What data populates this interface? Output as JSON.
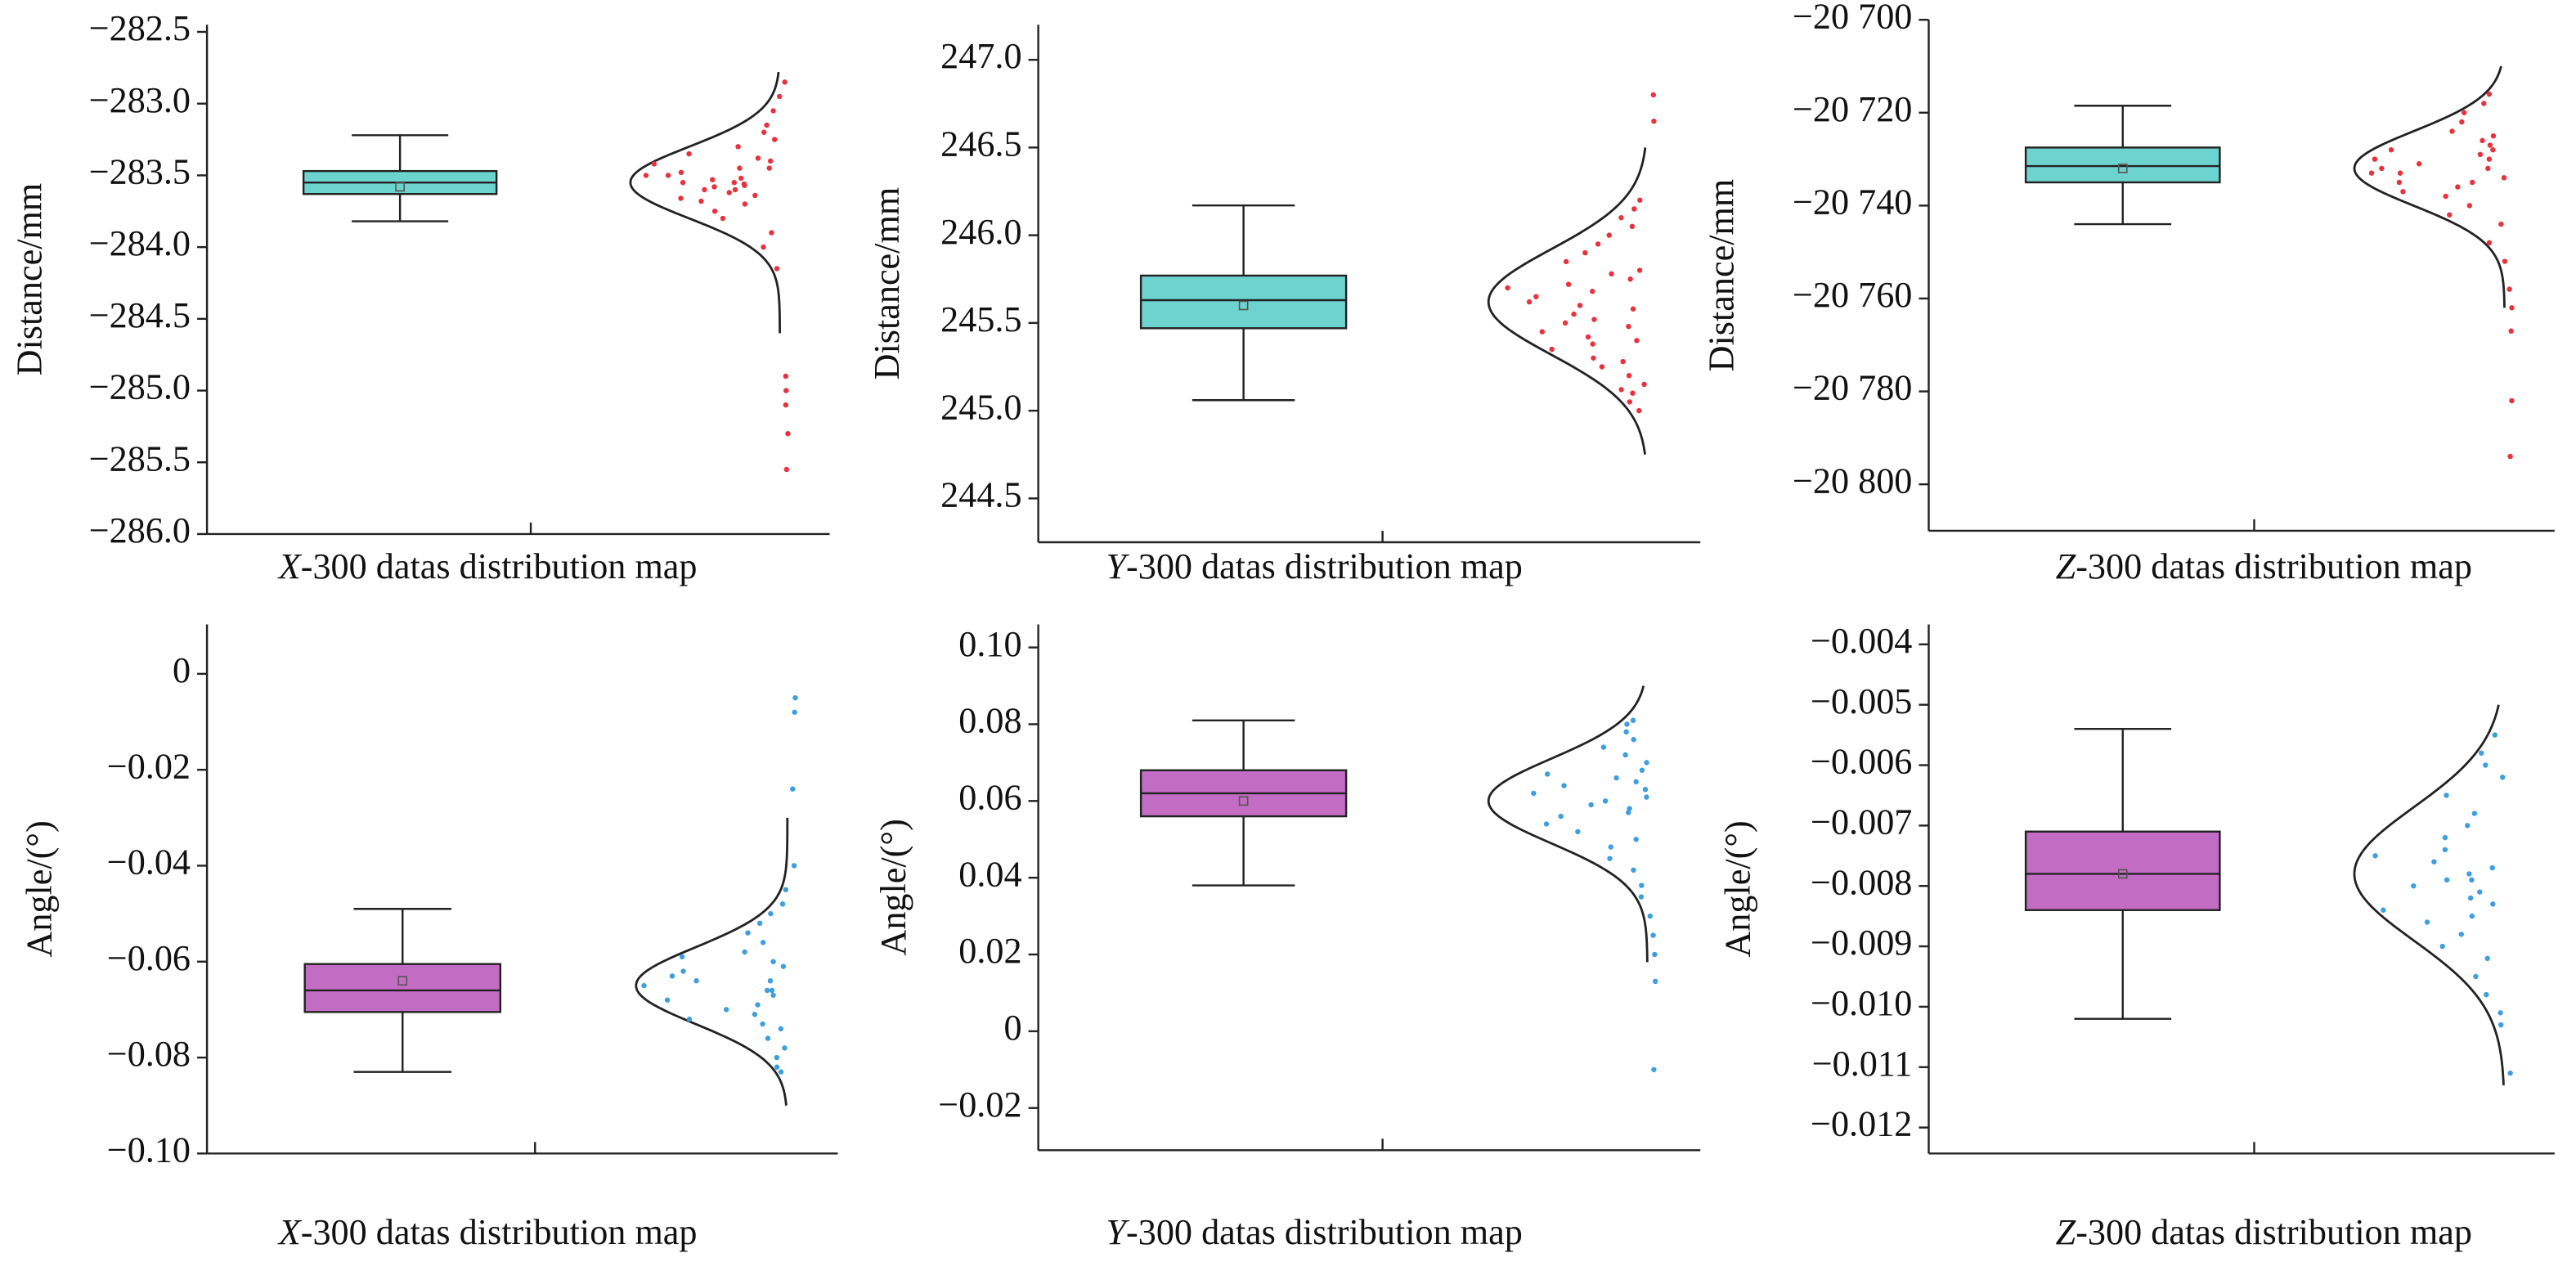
{
  "chart_data": [
    {
      "type": "box",
      "ylabel": "Distance/mm",
      "xlabel_var": "X",
      "xlabel": "-300 datas distribution map",
      "ylim": [
        -286.0,
        -282.45
      ],
      "yticks": [
        {
          "value": -282.5,
          "label": "−282.5"
        },
        {
          "value": -283.0,
          "label": "−283.0"
        },
        {
          "value": -283.5,
          "label": "−283.5"
        },
        {
          "value": -284.0,
          "label": "−284.0"
        },
        {
          "value": -284.5,
          "label": "−284.5"
        },
        {
          "value": -285.0,
          "label": "−285.0"
        },
        {
          "value": -285.5,
          "label": "−285.5"
        },
        {
          "value": -286.0,
          "label": "−286.0"
        }
      ],
      "box": {
        "min": -283.82,
        "q1": -283.63,
        "median": -283.55,
        "mean": -283.58,
        "q3": -283.47,
        "max": -283.22
      },
      "box_color": "#6dd3cf",
      "points": [
        -283.42,
        -283.45,
        -283.48,
        -283.5,
        -283.52,
        -283.53,
        -283.55,
        -283.56,
        -283.57,
        -283.58,
        -283.6,
        -283.62,
        -283.64,
        -283.66,
        -283.68,
        -283.7,
        -283.45,
        -283.5,
        -283.55,
        -283.6,
        -283.4,
        -283.38,
        -283.35,
        -283.3,
        -283.25,
        -283.2,
        -283.15,
        -283.05,
        -282.95,
        -282.85,
        -283.75,
        -283.8,
        -283.9,
        -284.0,
        -284.15,
        -284.9,
        -285.0,
        -285.1,
        -285.3,
        -285.55
      ],
      "points_color": "#e8323c",
      "curve": {
        "mean": -283.55,
        "sd": 0.25,
        "ylim": [
          -284.6,
          -282.78
        ]
      }
    },
    {
      "type": "box",
      "ylabel": "Distance/mm",
      "xlabel_var": "Y",
      "xlabel": "-300 datas distribution map",
      "ylim": [
        244.25,
        247.2
      ],
      "yticks": [
        {
          "value": 247.0,
          "label": "247.0"
        },
        246.5,
        {
          "value": 246.0,
          "label": "246.0"
        },
        245.5,
        {
          "value": 245.0,
          "label": "245.0"
        },
        244.5
      ],
      "box": {
        "min": 245.06,
        "q1": 245.47,
        "median": 245.63,
        "mean": 245.6,
        "q3": 245.77,
        "max": 246.17
      },
      "box_color": "#6dd3cf",
      "points": [
        245.78,
        245.75,
        245.7,
        245.65,
        245.6,
        245.55,
        245.5,
        245.45,
        245.4,
        245.35,
        245.3,
        245.25,
        245.2,
        245.15,
        245.1,
        245.05,
        245.0,
        245.85,
        245.9,
        246.0,
        246.1,
        246.15,
        246.2,
        245.62,
        245.58,
        245.72,
        245.48,
        245.68,
        245.52,
        245.42,
        245.38,
        245.28,
        245.8,
        245.95,
        246.05,
        245.12,
        246.65,
        246.8
      ],
      "points_color": "#e8323c",
      "curve": {
        "mean": 245.62,
        "sd": 0.3,
        "ylim": [
          244.75,
          246.5
        ]
      }
    },
    {
      "type": "box",
      "ylabel": "Distance/mm",
      "xlabel_var": "Z",
      "xlabel": "-300 datas distribution map",
      "ylim": [
        -20810,
        -20700
      ],
      "yticks": [
        {
          "value": -20700,
          "label": "−20 700"
        },
        {
          "value": -20720,
          "label": "−20 720"
        },
        {
          "value": -20740,
          "label": "−20 740"
        },
        {
          "value": -20760,
          "label": "−20 760"
        },
        {
          "value": -20780,
          "label": "−20 780"
        },
        {
          "value": -20800,
          "label": "−20 800"
        }
      ],
      "box": {
        "min": -20744,
        "q1": -20735,
        "median": -20731.5,
        "mean": -20732,
        "q3": -20727.5,
        "max": -20718.5
      },
      "box_color": "#6dd3cf",
      "points": [
        -20722,
        -20724,
        -20726,
        -20727,
        -20728,
        -20729,
        -20730,
        -20731,
        -20732,
        -20733,
        -20734,
        -20735,
        -20736,
        -20737,
        -20738,
        -20740,
        -20742,
        -20744,
        -20725,
        -20730,
        -20732,
        -20728,
        -20735,
        -20733,
        -20716,
        -20718,
        -20720,
        -20748,
        -20752,
        -20758,
        -20762,
        -20767,
        -20782,
        -20794
      ],
      "points_color": "#e8323c",
      "curve": {
        "mean": -20732,
        "sd": 8,
        "ylim": [
          -20762,
          -20710
        ]
      }
    },
    {
      "type": "box",
      "ylabel": "Angle/(°)",
      "xlabel_var": "X",
      "xlabel": "-300 datas distribution map",
      "ylim": [
        -0.1,
        0.0103
      ],
      "yticks": [
        0,
        {
          "value": -0.02,
          "label": "−0.02"
        },
        {
          "value": -0.04,
          "label": "−0.04"
        },
        {
          "value": -0.06,
          "label": "−0.06"
        },
        {
          "value": -0.08,
          "label": "−0.08"
        },
        {
          "value": -0.1,
          "label": "−0.10"
        }
      ],
      "box": {
        "min": -0.083,
        "q1": -0.0705,
        "median": -0.066,
        "mean": -0.064,
        "q3": -0.0605,
        "max": -0.049
      },
      "box_color": "#c36cc3",
      "points": [
        -0.06,
        -0.062,
        -0.064,
        -0.066,
        -0.068,
        -0.07,
        -0.072,
        -0.074,
        -0.076,
        -0.078,
        -0.065,
        -0.067,
        -0.063,
        -0.061,
        -0.058,
        -0.056,
        -0.054,
        -0.052,
        -0.05,
        -0.048,
        -0.045,
        -0.069,
        -0.071,
        -0.073,
        -0.08,
        -0.082,
        -0.083,
        -0.04,
        -0.024,
        -0.008,
        -0.005,
        -0.059,
        -0.064,
        -0.066
      ],
      "points_color": "#3d9ee0",
      "curve": {
        "mean": -0.065,
        "sd": 0.008,
        "ylim": [
          -0.09,
          -0.03
        ]
      }
    },
    {
      "type": "box",
      "ylabel": "Angle/(°)",
      "xlabel_var": "Y",
      "xlabel": "-300 datas distribution map",
      "ylim": [
        -0.031,
        0.106
      ],
      "yticks": [
        {
          "value": 0.1,
          "label": "0.10"
        },
        0.08,
        0.06,
        0.04,
        0.02,
        0,
        {
          "value": -0.02,
          "label": "−0.02"
        }
      ],
      "box": {
        "min": 0.038,
        "q1": 0.056,
        "median": 0.062,
        "mean": 0.06,
        "q3": 0.068,
        "max": 0.081
      },
      "box_color": "#c36cc3",
      "points": [
        0.07,
        0.068,
        0.066,
        0.064,
        0.062,
        0.06,
        0.058,
        0.056,
        0.054,
        0.052,
        0.05,
        0.048,
        0.045,
        0.042,
        0.072,
        0.074,
        0.076,
        0.078,
        0.08,
        0.081,
        0.063,
        0.061,
        0.059,
        0.057,
        0.065,
        0.067,
        0.038,
        0.035,
        0.03,
        0.025,
        0.02,
        0.013,
        -0.01
      ],
      "points_color": "#3d9ee0",
      "curve": {
        "mean": 0.06,
        "sd": 0.011,
        "ylim": [
          0.018,
          0.09
        ]
      }
    },
    {
      "type": "box",
      "ylabel": "Angle/(°)",
      "xlabel_var": "Z",
      "xlabel": "-300 datas distribution map",
      "ylim": [
        -0.01243,
        -0.00367
      ],
      "yticks": [
        {
          "value": -0.004,
          "label": "−0.004"
        },
        {
          "value": -0.005,
          "label": "−0.005"
        },
        {
          "value": -0.006,
          "label": "−0.006"
        },
        {
          "value": -0.007,
          "label": "−0.007"
        },
        {
          "value": -0.008,
          "label": "−0.008"
        },
        {
          "value": -0.009,
          "label": "−0.009"
        },
        {
          "value": -0.01,
          "label": "−0.010"
        },
        {
          "value": -0.011,
          "label": "−0.011"
        },
        {
          "value": -0.012,
          "label": "−0.012"
        }
      ],
      "box": {
        "min": -0.0102,
        "q1": -0.0084,
        "median": -0.0078,
        "mean": -0.0078,
        "q3": -0.0071,
        "max": -0.0054
      },
      "box_color": "#c36cc3",
      "points": [
        -0.0055,
        -0.006,
        -0.0065,
        -0.007,
        -0.0072,
        -0.0074,
        -0.0076,
        -0.0078,
        -0.008,
        -0.0082,
        -0.0084,
        -0.0086,
        -0.0088,
        -0.009,
        -0.0092,
        -0.0095,
        -0.0098,
        -0.0101,
        -0.0103,
        -0.0075,
        -0.0079,
        -0.0081,
        -0.0077,
        -0.0083,
        -0.0068,
        -0.0062,
        -0.0058,
        -0.0111,
        -0.0079,
        -0.0085
      ],
      "points_color": "#3d9ee0",
      "curve": {
        "mean": -0.0078,
        "sd": 0.0011,
        "ylim": [
          -0.0113,
          -0.005
        ]
      }
    }
  ]
}
